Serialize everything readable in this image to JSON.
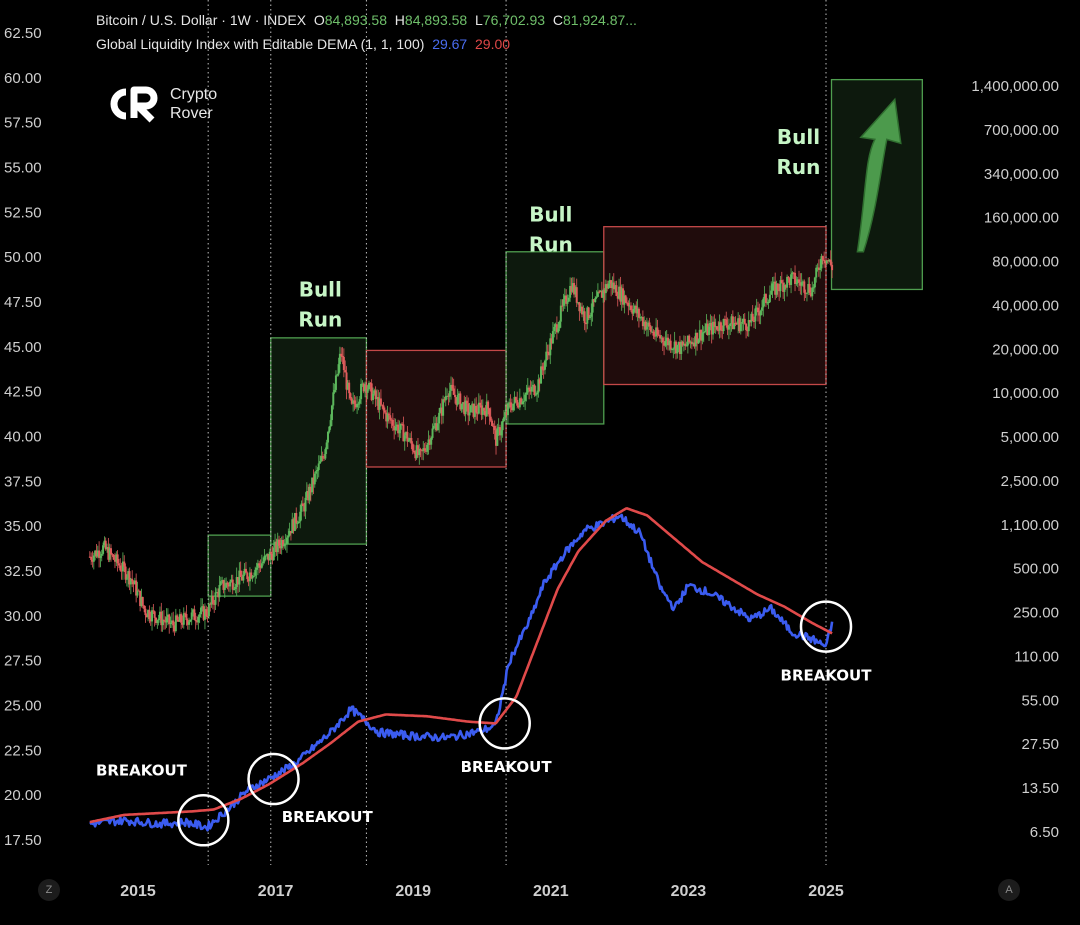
{
  "header": {
    "symbol": "Bitcoin / U.S. Dollar · 1W · INDEX",
    "o_label": "O",
    "o_value": "84,893.58",
    "h_label": "H",
    "h_value": "84,893.58",
    "l_label": "L",
    "l_value": "76,702.93",
    "c_label": "C",
    "c_value": "81,924.87...",
    "indicator": "Global Liquidity Index with Editable DEMA (1, 1, 100)",
    "ind_value_1": "29.67",
    "ind_value_2": "29.00"
  },
  "logo": {
    "line1": "Crypto",
    "line2": "Rover"
  },
  "corner": {
    "left": "Z",
    "right": "A"
  },
  "colors": {
    "bg": "#000000",
    "text": "#d9d9d9",
    "candle_up": "#5cb85c",
    "candle_down": "#e05c5c",
    "liquidity": "#3b5cf0",
    "dema": "#e04a4a",
    "bull_zone": "#4f9e4f",
    "bear_zone": "#c44848",
    "annot": "#ffffff",
    "bull_text": "#c6f5c6"
  },
  "chart_data": {
    "type": "line",
    "title": "",
    "x": {
      "labels": [
        "2015",
        "2017",
        "2019",
        "2021",
        "2023",
        "2025"
      ]
    },
    "y_left": {
      "ticks": [
        62.5,
        60,
        57.5,
        55,
        52.5,
        50,
        47.5,
        45,
        42.5,
        40,
        37.5,
        35,
        32.5,
        30,
        27.5,
        25,
        22.5,
        20,
        17.5
      ],
      "decimals": 2
    },
    "y_right": {
      "scale": "log",
      "ticks": [
        "1,400,000.00",
        "700,000.00",
        "340,000.00",
        "160,000.00",
        "80,000.00",
        "40,000.00",
        "20,000.00",
        "10,000.00",
        "5,000.00",
        "2,500.00",
        "1,100.00",
        "500.00",
        "250.00",
        "110.00",
        "55.00",
        "27.50",
        "13.50",
        "6.50"
      ]
    },
    "series": [
      {
        "name": "Global Liquidity Index",
        "points": [
          [
            2014.3,
            18.4
          ],
          [
            2014.8,
            18.6
          ],
          [
            2015.3,
            18.4
          ],
          [
            2015.7,
            18.5
          ],
          [
            2016.0,
            18.2
          ],
          [
            2016.3,
            19.2
          ],
          [
            2016.6,
            20.3
          ],
          [
            2016.9,
            20.9
          ],
          [
            2017.3,
            21.8
          ],
          [
            2017.8,
            23.5
          ],
          [
            2018.1,
            24.8
          ],
          [
            2018.5,
            23.5
          ],
          [
            2019.0,
            23.3
          ],
          [
            2019.5,
            23.2
          ],
          [
            2020.0,
            23.6
          ],
          [
            2020.2,
            23.9
          ],
          [
            2020.4,
            27.5
          ],
          [
            2020.7,
            29.8
          ],
          [
            2020.9,
            31.8
          ],
          [
            2021.2,
            33.5
          ],
          [
            2021.5,
            34.8
          ],
          [
            2021.8,
            35.2
          ],
          [
            2022.0,
            35.6
          ],
          [
            2022.3,
            34.6
          ],
          [
            2022.6,
            31.5
          ],
          [
            2022.8,
            30.4
          ],
          [
            2023.0,
            31.7
          ],
          [
            2023.3,
            31.3
          ],
          [
            2023.6,
            30.6
          ],
          [
            2023.9,
            29.8
          ],
          [
            2024.2,
            30.4
          ],
          [
            2024.5,
            29.1
          ],
          [
            2024.8,
            28.7
          ],
          [
            2025.0,
            28.3
          ],
          [
            2025.1,
            29.7
          ]
        ]
      },
      {
        "name": "DEMA",
        "points": [
          [
            2014.3,
            18.5
          ],
          [
            2014.8,
            18.9
          ],
          [
            2015.3,
            19.0
          ],
          [
            2015.8,
            19.1
          ],
          [
            2016.1,
            19.2
          ],
          [
            2016.5,
            19.8
          ],
          [
            2016.9,
            20.6
          ],
          [
            2017.4,
            21.8
          ],
          [
            2017.8,
            22.9
          ],
          [
            2018.2,
            24.1
          ],
          [
            2018.6,
            24.5
          ],
          [
            2019.2,
            24.4
          ],
          [
            2019.8,
            24.1
          ],
          [
            2020.2,
            24.0
          ],
          [
            2020.5,
            25.5
          ],
          [
            2020.8,
            28.5
          ],
          [
            2021.1,
            31.5
          ],
          [
            2021.4,
            33.6
          ],
          [
            2021.8,
            35.3
          ],
          [
            2022.1,
            36.0
          ],
          [
            2022.4,
            35.6
          ],
          [
            2022.8,
            34.3
          ],
          [
            2023.2,
            33.0
          ],
          [
            2023.6,
            32.1
          ],
          [
            2024.0,
            31.2
          ],
          [
            2024.4,
            30.5
          ],
          [
            2024.8,
            29.6
          ],
          [
            2025.1,
            29.0
          ]
        ]
      }
    ],
    "price_keypoints": [
      [
        2014.3,
        33.3
      ],
      [
        2014.5,
        33.8
      ],
      [
        2014.9,
        32.1
      ],
      [
        2015.1,
        30.3
      ],
      [
        2015.5,
        29.5
      ],
      [
        2015.8,
        30.0
      ],
      [
        2016.0,
        30.2
      ],
      [
        2016.2,
        31.6
      ],
      [
        2016.6,
        32.3
      ],
      [
        2016.9,
        33.3
      ],
      [
        2017.1,
        34.2
      ],
      [
        2017.4,
        36.0
      ],
      [
        2017.7,
        39.0
      ],
      [
        2017.95,
        44.7
      ],
      [
        2018.1,
        41.5
      ],
      [
        2018.3,
        43.0
      ],
      [
        2018.6,
        41.2
      ],
      [
        2018.9,
        40.0
      ],
      [
        2019.1,
        38.8
      ],
      [
        2019.4,
        41.3
      ],
      [
        2019.5,
        42.7
      ],
      [
        2019.8,
        41.4
      ],
      [
        2020.1,
        41.6
      ],
      [
        2020.2,
        39.8
      ],
      [
        2020.4,
        41.7
      ],
      [
        2020.8,
        42.8
      ],
      [
        2021.0,
        45.3
      ],
      [
        2021.3,
        48.5
      ],
      [
        2021.5,
        46.6
      ],
      [
        2021.85,
        48.6
      ],
      [
        2022.1,
        47.6
      ],
      [
        2022.5,
        45.7
      ],
      [
        2022.9,
        44.9
      ],
      [
        2023.2,
        45.8
      ],
      [
        2023.5,
        46.3
      ],
      [
        2023.9,
        46.3
      ],
      [
        2024.2,
        48.1
      ],
      [
        2024.5,
        48.8
      ],
      [
        2024.8,
        48.2
      ],
      [
        2024.95,
        50.2
      ],
      [
        2025.1,
        49.4
      ]
    ],
    "zones": [
      {
        "kind": "bull",
        "x0": 2016.02,
        "x1": 2016.93,
        "y0": 31.1,
        "y1": 34.5
      },
      {
        "kind": "bull",
        "x0": 2016.93,
        "x1": 2018.32,
        "y0": 34.0,
        "y1": 45.5
      },
      {
        "kind": "bear",
        "x0": 2018.32,
        "x1": 2020.35,
        "y0": 38.3,
        "y1": 44.8
      },
      {
        "kind": "bull",
        "x0": 2020.35,
        "x1": 2021.77,
        "y0": 40.7,
        "y1": 50.3
      },
      {
        "kind": "bear",
        "x0": 2021.77,
        "x1": 2025.0,
        "y0": 42.9,
        "y1": 51.7
      },
      {
        "kind": "bull",
        "x0": 2025.08,
        "x1": 2026.4,
        "y0": 48.2,
        "y1": 59.9
      }
    ],
    "vlines": [
      2016.02,
      2016.93,
      2018.32,
      2020.35,
      2025.0
    ],
    "labels": {
      "bull1": "Bull",
      "bull2": "Run",
      "breakout_1": "BREAKOUT",
      "breakout_2": "BREAKOUT",
      "breakout_3": "BREAKOUT",
      "breakout_4": "BREAKOUT"
    },
    "breakout_points": [
      [
        2015.95,
        18.6
      ],
      [
        2016.97,
        20.9
      ],
      [
        2020.33,
        24.0
      ],
      [
        2025.0,
        29.4
      ]
    ],
    "annotation_positions": {
      "bull_labels": [
        [
          2017.65,
          47.8
        ],
        [
          2021.0,
          52.0
        ],
        [
          2024.6,
          56.3
        ]
      ],
      "breakout_labels": [
        [
          2015.05,
          21.1
        ],
        [
          2017.75,
          18.5
        ],
        [
          2020.35,
          21.3
        ],
        [
          2025.0,
          26.4
        ]
      ]
    },
    "arrow": {
      "from": [
        2025.5,
        50.3
      ],
      "to": [
        2026.0,
        58.8
      ]
    },
    "grid": false,
    "legend": "none"
  }
}
